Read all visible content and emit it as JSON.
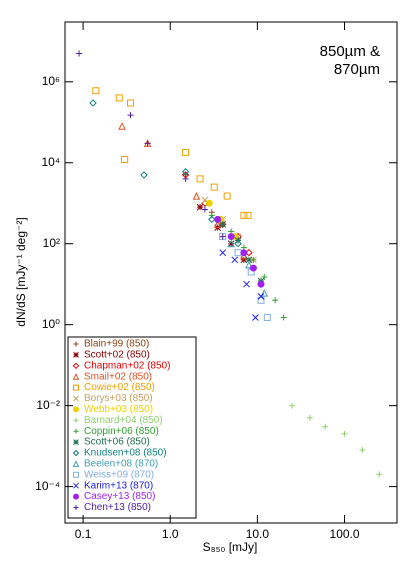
{
  "chart_data": {
    "type": "scatter",
    "title": [
      "850µm &",
      "870µm"
    ],
    "xlabel": "S₈₅₀ [mJy]",
    "ylabel": "dN/dS [mJy⁻¹ deg⁻²]",
    "xlog": true,
    "ylog": true,
    "xlim": [
      0.062,
      400
    ],
    "ylim": [
      1.26e-05,
      30000000
    ],
    "xticks": [
      {
        "value": 0.1,
        "label": "0.1"
      },
      {
        "value": 1,
        "label": "1.0"
      },
      {
        "value": 10,
        "label": "10.0"
      },
      {
        "value": 100,
        "label": "100.0"
      }
    ],
    "yticks": [
      {
        "value": 0.0001,
        "label": "10⁻⁴"
      },
      {
        "value": 0.01,
        "label": "10⁻²"
      },
      {
        "value": 1,
        "label": "10⁰"
      },
      {
        "value": 100,
        "label": "10²"
      },
      {
        "value": 10000,
        "label": "10⁴"
      },
      {
        "value": 1000000,
        "label": "10⁶"
      }
    ],
    "legend": "lower left",
    "series": [
      {
        "name": "Blain+99 (850)",
        "color": "#8b4513",
        "marker": "plus",
        "x": [
          0.55,
          1.5,
          3.0
        ],
        "values": [
          30000,
          5000,
          600
        ]
      },
      {
        "name": "Scott+02 (850)",
        "color": "#8b0000",
        "marker": "asterisk",
        "x": [
          2.2,
          3.5,
          5.0,
          7.0
        ],
        "values": [
          800,
          250,
          100,
          40
        ]
      },
      {
        "name": "Chapman+02 (850)",
        "color": "#e00000",
        "marker": "diamond",
        "x": [
          1.5,
          2.5,
          4.0,
          6.0,
          8.0
        ],
        "values": [
          5000,
          1000,
          300,
          150,
          60
        ]
      },
      {
        "name": "Smail+02 (850)",
        "color": "#e05020",
        "marker": "triangle",
        "x": [
          0.28,
          0.55,
          2.0,
          3.5,
          7.0
        ],
        "values": [
          80000,
          30000,
          1500,
          300,
          50
        ]
      },
      {
        "name": "Cowie+02 (850)",
        "color": "#f0a000",
        "marker": "square",
        "x": [
          0.14,
          0.26,
          0.35,
          0.3,
          1.5,
          2.2,
          3.2,
          4.5,
          7.0,
          7.8
        ],
        "values": [
          600000,
          400000,
          300000,
          12000,
          18000,
          4000,
          2500,
          1500,
          500,
          500
        ]
      },
      {
        "name": "Borys+03 (850)",
        "color": "#c8a060",
        "marker": "x",
        "x": [
          2.5,
          4.0,
          6.0,
          9.0
        ],
        "values": [
          1200,
          400,
          150,
          40
        ]
      },
      {
        "name": "Webb+03 (850)",
        "color": "#f0d000",
        "marker": "circle",
        "x": [
          2.8,
          3.8,
          5.5
        ],
        "values": [
          1000,
          400,
          150
        ]
      },
      {
        "name": "Barnard+04 (850)",
        "color": "#90d070",
        "marker": "plus",
        "x": [
          25,
          40,
          60,
          100,
          160,
          250
        ],
        "values": [
          0.01,
          0.005,
          0.003,
          0.002,
          0.0008,
          0.0002
        ]
      },
      {
        "name": "Coppin+06 (850)",
        "color": "#30a030",
        "marker": "plus",
        "x": [
          3.0,
          5.0,
          7.0,
          9.0,
          12.0,
          16.0,
          20.0
        ],
        "values": [
          500,
          200,
          80,
          40,
          15,
          4,
          1.5
        ]
      },
      {
        "name": "Scott+06 (850)",
        "color": "#207050",
        "marker": "asterisk",
        "x": [
          4.0,
          6.0,
          8.0,
          11.0
        ],
        "values": [
          300,
          120,
          40,
          12
        ]
      },
      {
        "name": "Knudsen+08 (850)",
        "color": "#108080",
        "marker": "diamond",
        "x": [
          0.13,
          0.5,
          1.5,
          3.0,
          6.0
        ],
        "values": [
          300000,
          5000,
          6000,
          400,
          100
        ]
      },
      {
        "name": "Beelen+08 (870)",
        "color": "#40a0b0",
        "marker": "triangle",
        "x": [
          5.0,
          8.0,
          12.0
        ],
        "values": [
          100,
          30,
          6
        ]
      },
      {
        "name": "Weiss+09 (870)",
        "color": "#80b0e0",
        "marker": "square",
        "x": [
          4.0,
          6.0,
          8.5,
          11.0,
          13.0
        ],
        "values": [
          150,
          60,
          20,
          4,
          1.5
        ]
      },
      {
        "name": "Karim+13 (870)",
        "color": "#2020e0",
        "marker": "x",
        "x": [
          4.0,
          5.5,
          7.5,
          9.5,
          11.0
        ],
        "values": [
          60,
          40,
          10,
          1.5,
          5
        ]
      },
      {
        "name": "Casey+13 (850)",
        "color": "#a020f0",
        "marker": "circle",
        "x": [
          3.5,
          5.0,
          7.0,
          9.0,
          11.0
        ],
        "values": [
          400,
          150,
          60,
          25,
          10
        ]
      },
      {
        "name": "Chen+13 (850)",
        "color": "#5020a0",
        "marker": "plus",
        "x": [
          0.09,
          0.35,
          0.55,
          1.5,
          2.5,
          4.0
        ],
        "values": [
          5000000,
          150000,
          30000,
          4000,
          700,
          150
        ]
      }
    ]
  }
}
